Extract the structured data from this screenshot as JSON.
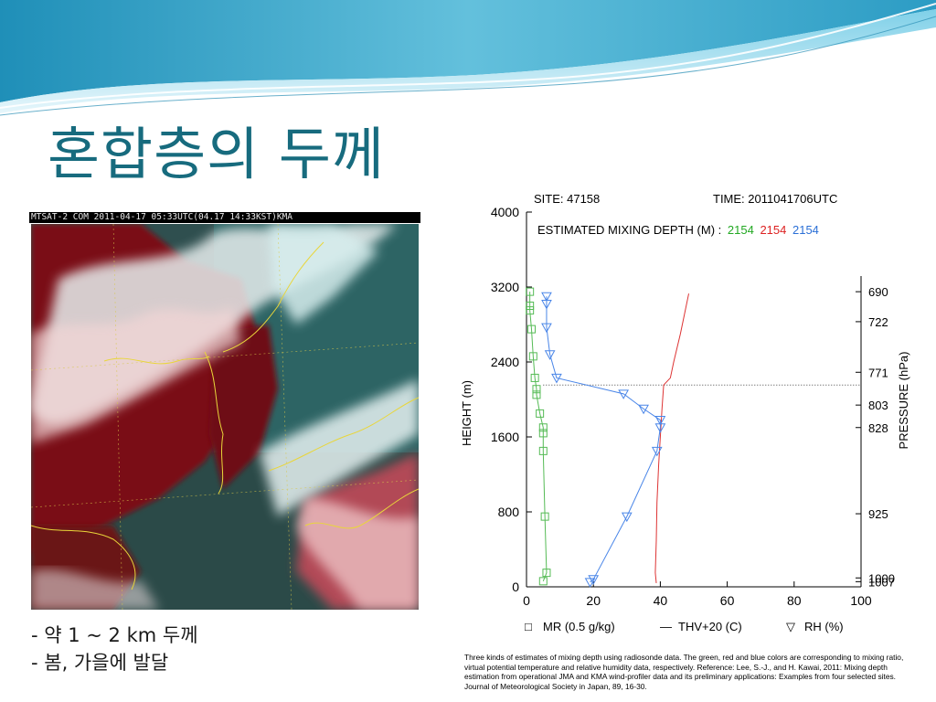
{
  "slide": {
    "title": "혼합층의 두께",
    "bullets": [
      "- 약 1 ~ 2 km 두께",
      "- 봄, 가을에 발달"
    ]
  },
  "satellite": {
    "header": "MTSAT-2  COM 2011-04-17 05:33UTC(04.17 14:33KST)KMA"
  },
  "chart_data": {
    "type": "line",
    "site_label": "SITE: 47158",
    "time_label": "TIME: 2011041706UTC",
    "mixing_depth_label": "ESTIMATED MIXING DEPTH (M) :",
    "mixing_depths": [
      {
        "value": "2154",
        "color": "#22a822"
      },
      {
        "value": "2154",
        "color": "#dd2222"
      },
      {
        "value": "2154",
        "color": "#2a6fd6"
      }
    ],
    "mixing_depth_m": 2154,
    "ylabel": "HEIGHT (m)",
    "ylabel_right": "PRESSURE (hPa)",
    "xlim": [
      0,
      100
    ],
    "ylim": [
      0,
      4000
    ],
    "xticks": [
      "0",
      "20",
      "40",
      "60",
      "80",
      "100"
    ],
    "yticks": [
      "0",
      "800",
      "1600",
      "2400",
      "3200",
      "4000"
    ],
    "ytick_values": [
      0,
      800,
      1600,
      2400,
      3200,
      4000
    ],
    "xtick_values": [
      0,
      20,
      40,
      60,
      80,
      100
    ],
    "pressure_ticks": [
      {
        "label": "690",
        "height": 3150
      },
      {
        "label": "722",
        "height": 2830
      },
      {
        "label": "771",
        "height": 2290
      },
      {
        "label": "803",
        "height": 1940
      },
      {
        "label": "828",
        "height": 1700
      },
      {
        "label": "925",
        "height": 780
      },
      {
        "label": "1000",
        "height": 95
      },
      {
        "label": "1007",
        "height": 55
      }
    ],
    "series": [
      {
        "name": "MR (0.5 g/kg)",
        "color": "#55bb55",
        "marker": "square",
        "x": [
          1,
          1,
          1,
          1.5,
          2,
          2.5,
          3,
          3,
          4,
          5,
          5,
          5,
          5.5,
          6,
          5
        ],
        "y": [
          3150,
          3000,
          2950,
          2750,
          2460,
          2230,
          2110,
          2050,
          1850,
          1700,
          1640,
          1450,
          750,
          150,
          60
        ]
      },
      {
        "name": "THV+20 (C)",
        "color": "#dd3333",
        "marker": "none",
        "x": [
          48.5,
          46,
          44,
          43,
          41,
          40.5,
          40,
          39.5,
          39,
          38.8,
          38.5,
          38.8
        ],
        "y": [
          3130,
          2700,
          2400,
          2230,
          2154,
          1900,
          1600,
          1300,
          900,
          500,
          150,
          40
        ]
      },
      {
        "name": "RH (%)",
        "color": "#4a86e8",
        "marker": "triangle",
        "x": [
          6,
          6,
          6,
          7,
          9,
          29,
          35,
          40,
          40,
          39,
          30,
          20,
          19
        ],
        "y": [
          3100,
          3020,
          2770,
          2480,
          2230,
          2060,
          1900,
          1780,
          1700,
          1450,
          750,
          80,
          50
        ]
      }
    ],
    "legend": [
      {
        "label": "MR (0.5 g/kg)",
        "color": "#22a822",
        "symbol": "□"
      },
      {
        "label": "THV+20 (C)",
        "color": "#dd2222",
        "symbol": "—"
      },
      {
        "label": "RH (%)",
        "color": "#2a6fd6",
        "symbol": "▽"
      }
    ]
  },
  "caption": "Three kinds of estimates of mixing depth using radiosonde data. The green, red and blue colors are corresponding to mixing ratio, virtual potential temperature and relative humidity data, respectively. Reference: Lee, S.-J., and H. Kawai, 2011: Mixing depth estimation from operational JMA and KMA wind-profiler data and its preliminary applications: Examples from four selected sites. Journal of Meteorological Society in Japan, 89, 16-30.",
  "colors": {
    "title": "#176b7e",
    "wave_top": "#1f8fb8",
    "wave_light": "#bfe6f2"
  }
}
